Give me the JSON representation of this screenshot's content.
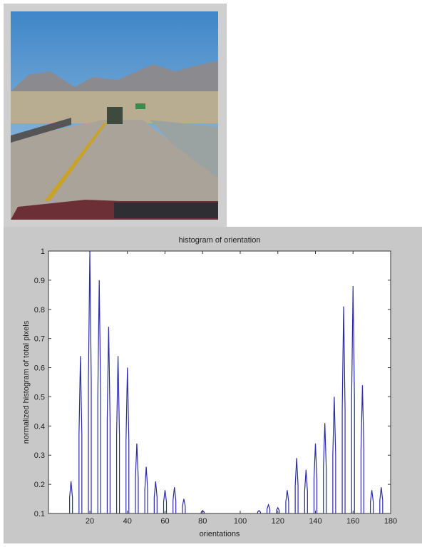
{
  "chart_data": {
    "type": "spike",
    "title": "histogram of orientation",
    "x_label": "orientations",
    "y_label": "normalized histogram of total pixels",
    "x": [
      10,
      15,
      20,
      25,
      30,
      35,
      40,
      45,
      50,
      55,
      60,
      65,
      70,
      80,
      110,
      115,
      120,
      125,
      130,
      135,
      140,
      145,
      150,
      155,
      160,
      165,
      170,
      175
    ],
    "values": [
      0.21,
      0.64,
      1,
      0.9,
      0.74,
      0.64,
      0.6,
      0.34,
      0.26,
      0.21,
      0.18,
      0.19,
      0.15,
      0.11,
      0.11,
      0.13,
      0.12,
      0.18,
      0.29,
      0.25,
      0.34,
      0.41,
      0.5,
      0.81,
      0.88,
      0.54,
      0.18,
      0.19
    ],
    "color": "#2b2ba8",
    "xlim": [
      -2,
      180
    ],
    "xticks": [
      20,
      40,
      60,
      80,
      100,
      120,
      140,
      160,
      180
    ],
    "ylim": [
      0.1,
      1
    ],
    "yticks": [
      0.1,
      0.2,
      0.3,
      0.4,
      0.5,
      0.6,
      0.7,
      0.8,
      0.9,
      1
    ]
  }
}
